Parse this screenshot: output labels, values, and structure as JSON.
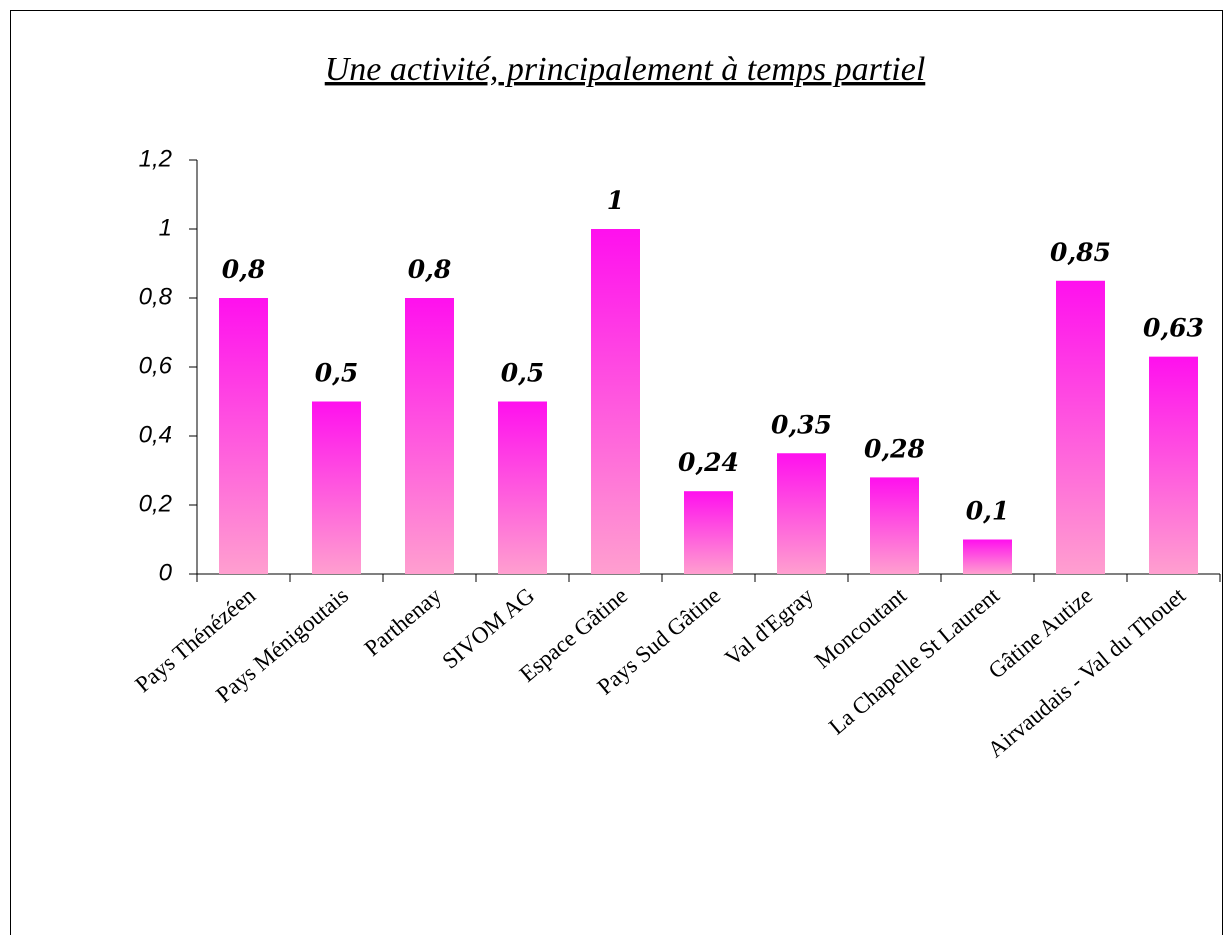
{
  "chart_data": {
    "type": "bar",
    "title": "Une activité, principalement à temps partiel",
    "categories": [
      "Pays Thénézéen",
      "Pays Ménigoutais",
      "Parthenay",
      "SIVOM AG",
      "Espace Gâtine",
      "Pays Sud Gâtine",
      "Val d'Egray",
      "Moncoutant",
      "La Chapelle St Laurent",
      "Gâtine Autize",
      "Airvaudais - Val du Thouet"
    ],
    "values": [
      0.8,
      0.5,
      0.8,
      0.5,
      1,
      0.24,
      0.35,
      0.28,
      0.1,
      0.85,
      0.63
    ],
    "value_labels": [
      "0,8",
      "0,5",
      "0,8",
      "0,5",
      "1",
      "0,24",
      "0,35",
      "0,28",
      "0,1",
      "0,85",
      "0,63"
    ],
    "color": "#ff10ee",
    "ylim": [
      0,
      1.2
    ],
    "yticks": [
      0,
      {
        "value": 0.2,
        "label": "0,2"
      },
      {
        "value": 0.4,
        "label": "0,4"
      },
      {
        "value": 0.6,
        "label": "0,6"
      },
      {
        "value": 0.8,
        "label": "0,8"
      },
      1,
      {
        "value": 1.2,
        "label": "1,2"
      }
    ],
    "grid": false
  }
}
